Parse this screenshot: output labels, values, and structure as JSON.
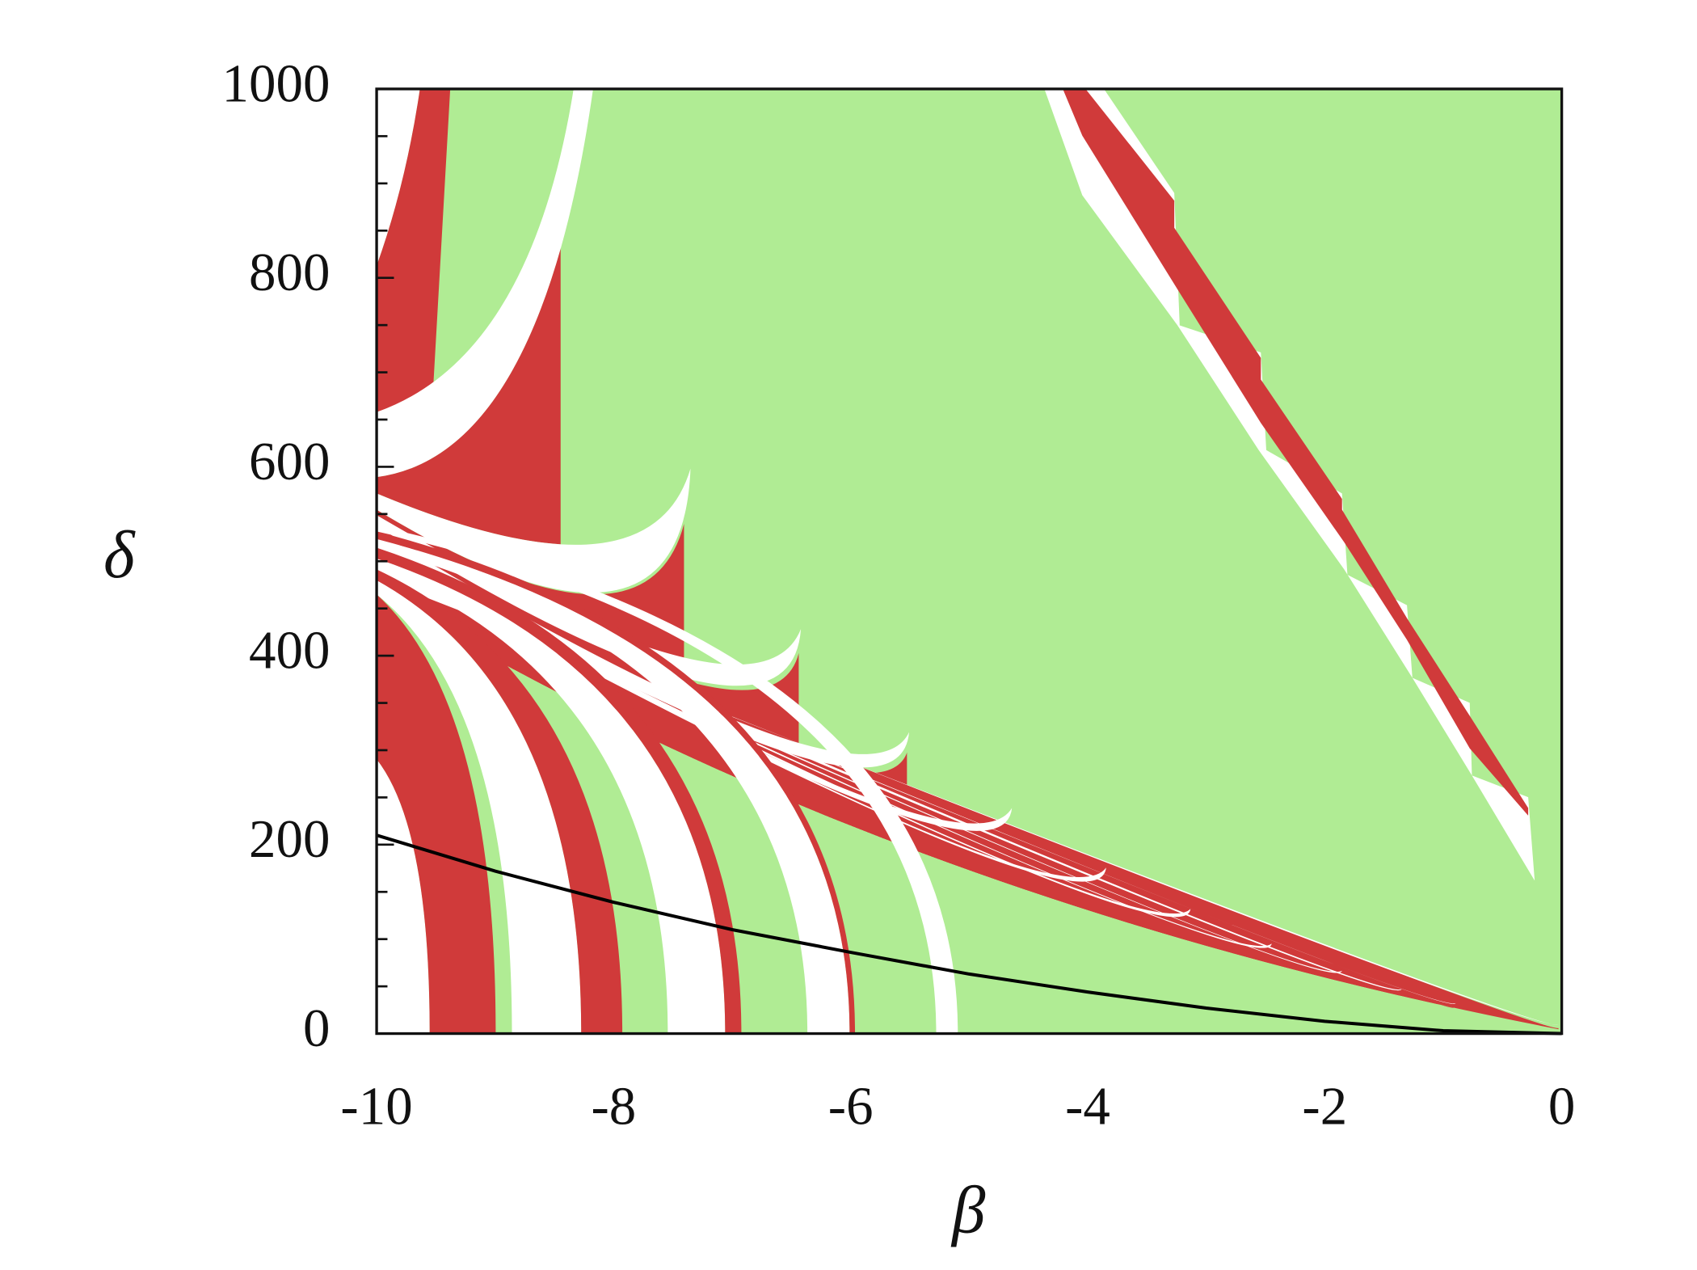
{
  "chart_data": {
    "type": "line",
    "xlabel": "β",
    "ylabel": "δ",
    "x": [
      -10,
      -9,
      -8,
      -7,
      -6,
      -5,
      -4,
      -3,
      -2,
      -1,
      0
    ],
    "series": [
      {
        "color": "#000000",
        "values": [
          210,
          172,
          139,
          110,
          86,
          63,
          44,
          27,
          13,
          3,
          0
        ]
      }
    ],
    "xlim": [
      -10,
      0
    ],
    "ylim": [
      0,
      1000
    ],
    "xticks": [
      -10,
      -8,
      -6,
      -4,
      -2,
      0
    ],
    "yticks": [
      0,
      200,
      400,
      600,
      800,
      1000
    ],
    "yminorticks": [
      50,
      100,
      150,
      250,
      300,
      350,
      450,
      500,
      550,
      650,
      700,
      750,
      850,
      900,
      950
    ]
  }
}
